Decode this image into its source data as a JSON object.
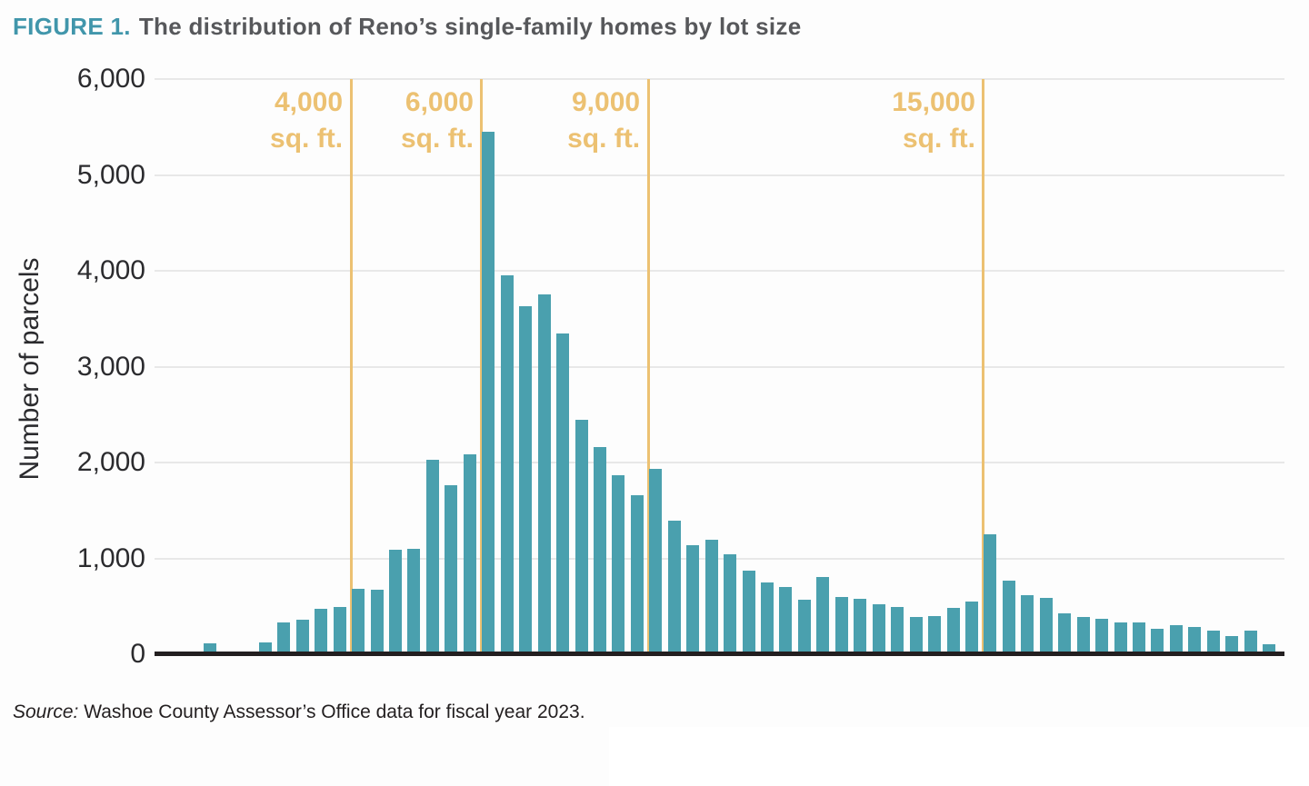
{
  "header": {
    "label": "FIGURE 1.",
    "title": "The distribution of Reno’s single-family homes by lot size",
    "label_color": "#4196ab",
    "title_color": "#57585b"
  },
  "source_note": {
    "prefix": "Source:",
    "text": " Washoe County Assessor’s Office data for fiscal year 2023.",
    "color": "#231f20"
  },
  "chart_data": {
    "type": "bar",
    "title": "The distribution of Reno’s single-family homes by lot size",
    "xlabel": "",
    "ylabel": "Number of parcels",
    "ylim": [
      0,
      6000
    ],
    "yticks": [
      0,
      1000,
      2000,
      3000,
      4000,
      5000,
      6000
    ],
    "ytick_labels": [
      "0",
      "1,000",
      "2,000",
      "3,000",
      "4,000",
      "5,000",
      "6,000"
    ],
    "grid": "horizontal",
    "legend": "none",
    "x_axis_tick_labels": "none",
    "bar_color": "#4aa0ae",
    "gridline_color": "#e8e8e8",
    "axis_line_color": "#231f20",
    "text_color": "#2b2b2e",
    "reference_line_color": "#ecc172",
    "values": [
      110,
      0,
      25,
      120,
      330,
      360,
      470,
      490,
      680,
      670,
      1090,
      1100,
      2030,
      1760,
      2090,
      5450,
      3950,
      3630,
      3750,
      3350,
      2450,
      2160,
      1870,
      1660,
      1930,
      1390,
      1140,
      1190,
      1040,
      870,
      750,
      700,
      570,
      810,
      600,
      580,
      520,
      490,
      390,
      400,
      480,
      550,
      1250,
      770,
      620,
      590,
      430,
      390,
      370,
      330,
      330,
      270,
      300,
      280,
      250,
      190,
      250,
      100
    ],
    "reference_lines": [
      {
        "line1": "4,000",
        "line2": "sq. ft.",
        "fraction": 0.1738
      },
      {
        "line1": "6,000",
        "line2": "sq. ft.",
        "fraction": 0.2896
      },
      {
        "line1": "9,000",
        "line2": "sq. ft.",
        "fraction": 0.4369
      },
      {
        "line1": "15,000",
        "line2": "sq. ft.",
        "fraction": 0.7337
      }
    ]
  }
}
